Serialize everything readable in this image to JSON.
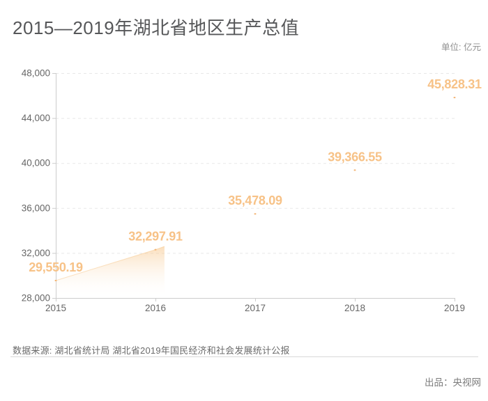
{
  "header": {
    "title": "2015—2019年湖北省地区生产总值",
    "unit_label": "单位: 亿元"
  },
  "chart_data": {
    "type": "area",
    "title": "2015—2019年湖北省地区生产总值",
    "unit": "亿元",
    "categories": [
      "2015",
      "2016",
      "2017",
      "2018",
      "2019"
    ],
    "series": [
      {
        "name": "湖北省地区生产总值",
        "values": [
          29550.19,
          32297.91,
          35478.09,
          39366.55,
          45828.31
        ]
      }
    ],
    "point_labels": [
      "29,550.19",
      "32,297.91",
      "35,478.09",
      "39,366.55",
      "45,828.31"
    ],
    "ylim": [
      28000,
      48000
    ],
    "ytick_interval": 4000,
    "ytick_labels": [
      "28,000",
      "32,000",
      "36,000",
      "40,000",
      "44,000",
      "48,000"
    ],
    "xlabel": "",
    "ylabel": "",
    "legend_position": "none",
    "grid": "horizontal-dashed",
    "area_progress": 1.09,
    "colors": {
      "area_top": "#f6be7a",
      "area_edge": "#f2c globalization",
      "point": "#f3b371",
      "data_label": "#f7c287",
      "axis_line": "#cccccc",
      "grid_line": "#e8e8e8",
      "axis_label": "#666666"
    }
  },
  "footer": {
    "source": "数据来源: 湖北省统计局 湖北省2019年国民经济和社会发展统计公报",
    "producer": "出品：央视网"
  }
}
